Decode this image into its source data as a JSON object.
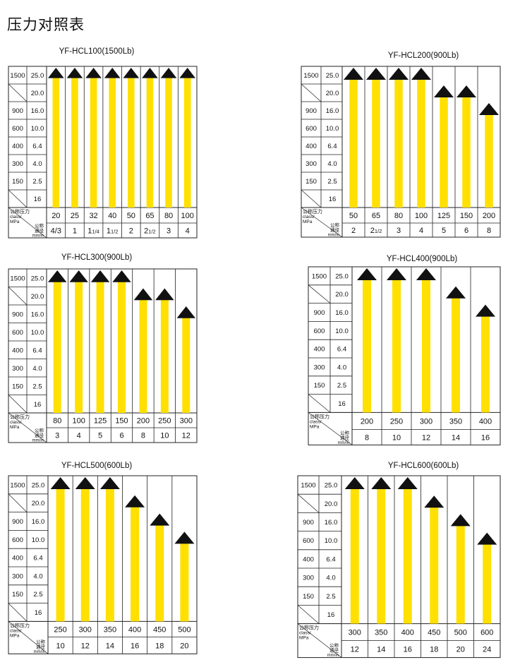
{
  "page": {
    "title": "压力对照表"
  },
  "row_labels": {
    "class": [
      "1500",
      "",
      "900",
      "600",
      "400",
      "300",
      "150",
      ""
    ],
    "mpa": [
      "25.0",
      "20.0",
      "16.0",
      "10.0",
      "6.4",
      "4.0",
      "2.5",
      "16"
    ],
    "pressure_label": [
      "公称压力",
      "class/",
      "MPa"
    ],
    "diameter_label": [
      "公称",
      "通径",
      "mm/in"
    ]
  },
  "colors": {
    "bar": "#ffe000",
    "arrow": "#111111",
    "grid": "#222222"
  },
  "tables": [
    {
      "id": "hcl100",
      "title": "YF-HCL100(1500Lb)",
      "pressures": [
        "20",
        "25",
        "32",
        "40",
        "50",
        "65",
        "80",
        "100"
      ],
      "sizes": [
        "4/3",
        "1",
        "11/4",
        "11/2",
        "2",
        "21/2",
        "3",
        "4"
      ],
      "max_mpa": [
        "25.0",
        "25.0",
        "25.0",
        "25.0",
        "25.0",
        "25.0",
        "25.0",
        "25.0"
      ]
    },
    {
      "id": "hcl200",
      "title": "YF-HCL200(900Lb)",
      "pressures": [
        "50",
        "65",
        "80",
        "100",
        "125",
        "150",
        "200"
      ],
      "sizes": [
        "2",
        "21/2",
        "3",
        "4",
        "5",
        "6",
        "8"
      ],
      "max_mpa": [
        "25.0",
        "25.0",
        "25.0",
        "25.0",
        "20.0",
        "20.0",
        "16.0"
      ]
    },
    {
      "id": "hcl300",
      "title": "YF-HCL300(900Lb)",
      "pressures": [
        "80",
        "100",
        "125",
        "150",
        "200",
        "250",
        "300"
      ],
      "sizes": [
        "3",
        "4",
        "5",
        "6",
        "8",
        "10",
        "12"
      ],
      "max_mpa": [
        "25.0",
        "25.0",
        "25.0",
        "25.0",
        "20.0",
        "20.0",
        "16.0"
      ]
    },
    {
      "id": "hcl400",
      "title": "YF-HCL400(900Lb)",
      "pressures": [
        "200",
        "250",
        "300",
        "350",
        "400"
      ],
      "sizes": [
        "8",
        "10",
        "12",
        "14",
        "16"
      ],
      "max_mpa": [
        "25.0",
        "25.0",
        "25.0",
        "20.0",
        "16.0"
      ]
    },
    {
      "id": "hcl500",
      "title": "YF-HCL500(600Lb)",
      "pressures": [
        "250",
        "300",
        "350",
        "400",
        "450",
        "500"
      ],
      "sizes": [
        "10",
        "12",
        "14",
        "16",
        "18",
        "20"
      ],
      "max_mpa": [
        "25.0",
        "25.0",
        "25.0",
        "20.0",
        "16.0",
        "10.0"
      ]
    },
    {
      "id": "hcl600",
      "title": "YF-HCL600(600Lb)",
      "pressures": [
        "300",
        "350",
        "400",
        "450",
        "500",
        "600"
      ],
      "sizes": [
        "12",
        "14",
        "16",
        "18",
        "20",
        "24"
      ],
      "max_mpa": [
        "25.0",
        "25.0",
        "25.0",
        "20.0",
        "16.0",
        "10.0"
      ]
    }
  ]
}
